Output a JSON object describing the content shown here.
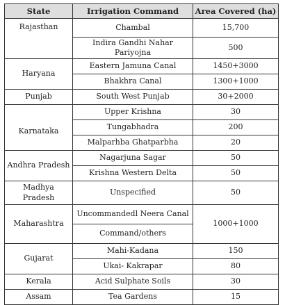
{
  "table": {
    "headers": [
      "State",
      "Irrigation Command",
      "Area Covered (ha)"
    ],
    "rows": [
      {
        "state": "Rajasthan",
        "entries": [
          {
            "command": "Chambal",
            "area": "15,700"
          },
          {
            "command": "Indira Gandhi Nahar Pariyojna",
            "area": "500"
          }
        ]
      },
      {
        "state": "Haryana",
        "entries": [
          {
            "command": "Eastern Jamuna Canal",
            "area": "1450+3000"
          },
          {
            "command": "Bhakhra Canal",
            "area": "1300+1000"
          }
        ]
      },
      {
        "state": "Punjab",
        "entries": [
          {
            "command": "South West Punjab",
            "area": "30+2000"
          }
        ]
      },
      {
        "state": "Karnataka",
        "entries": [
          {
            "command": "Upper Krishna",
            "area": "30"
          },
          {
            "command": "Tungabhadra",
            "area": "200"
          },
          {
            "command": "Malparhba Ghatparbha",
            "area": "20"
          }
        ]
      },
      {
        "state": "Andhra Pradesh",
        "entries": [
          {
            "command": "Nagarjuna Sagar",
            "area": "50"
          },
          {
            "command": "Krishna Western Delta",
            "area": "50"
          }
        ]
      },
      {
        "state": "Madhya Pradesh",
        "entries": [
          {
            "command": "Unspecified",
            "area": "50"
          }
        ]
      },
      {
        "state": "Maharashtra",
        "entries": [
          {
            "command": "Uncommandedl Neera Canal",
            "area": "1000+1000"
          },
          {
            "command": "Command/others",
            "area": ""
          }
        ]
      },
      {
        "state": "Gujarat",
        "entries": [
          {
            "command": "Mahi-Kadana",
            "area": "150"
          },
          {
            "command": "Ukai- Kakrapar",
            "area": "80"
          }
        ]
      },
      {
        "state": "Kerala",
        "entries": [
          {
            "command": "Acid Sulphate Soils",
            "area": "30"
          }
        ]
      },
      {
        "state": "Assam",
        "entries": [
          {
            "command": "Tea Gardens",
            "area": "15"
          }
        ]
      }
    ]
  }
}
